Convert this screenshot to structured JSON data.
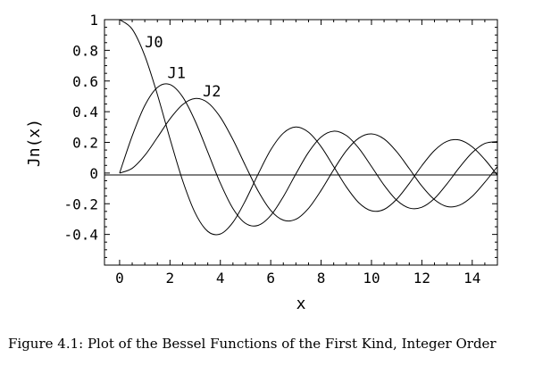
{
  "figure": {
    "caption": "Figure 4.1: Plot of the Bessel Functions of the First Kind, Integer Order"
  },
  "chart_data": {
    "type": "line",
    "title": "",
    "xlabel": "x",
    "ylabel": "Jn(x)",
    "xlim": [
      -0.6,
      15.0
    ],
    "ylim": [
      -0.6,
      1.0
    ],
    "x_ticks": [
      0,
      2,
      4,
      6,
      8,
      10,
      12,
      14
    ],
    "x_tick_labels": [
      "0",
      "2",
      "4",
      "6",
      "8",
      "10",
      "12",
      "14"
    ],
    "y_ticks": [
      1,
      0.8,
      0.6,
      0.4,
      0.2,
      0,
      -0.2,
      -0.4
    ],
    "y_tick_labels": [
      "1",
      "0.8",
      "0.6",
      "0.4",
      "0.2",
      "0",
      "-0.2",
      "-0.4"
    ],
    "grid": false,
    "legend": "none",
    "zero_line": true,
    "series": [
      {
        "name": "J0",
        "label_at": [
          1.0,
          0.82
        ],
        "x": [
          0,
          0.5,
          1.0,
          1.5,
          2.0,
          2.5,
          3.0,
          3.5,
          4.0,
          4.5,
          5.0,
          5.5,
          6.0,
          6.5,
          7.0,
          7.5,
          8.0,
          8.5,
          9.0,
          9.5,
          10.0,
          10.5,
          11.0,
          11.5,
          12.0,
          12.5,
          13.0,
          13.5,
          14.0,
          14.5,
          15.0
        ],
        "values": [
          1.0,
          0.938,
          0.765,
          0.512,
          0.224,
          -0.048,
          -0.26,
          -0.38,
          -0.397,
          -0.321,
          -0.178,
          -0.007,
          0.151,
          0.26,
          0.3,
          0.266,
          0.172,
          0.042,
          -0.09,
          -0.194,
          -0.246,
          -0.237,
          -0.171,
          -0.068,
          0.048,
          0.147,
          0.207,
          0.215,
          0.171,
          0.088,
          -0.014
        ]
      },
      {
        "name": "J1",
        "label_at": [
          1.9,
          0.62
        ],
        "x": [
          0,
          0.5,
          1.0,
          1.5,
          2.0,
          2.5,
          3.0,
          3.5,
          4.0,
          4.5,
          5.0,
          5.5,
          6.0,
          6.5,
          7.0,
          7.5,
          8.0,
          8.5,
          9.0,
          9.5,
          10.0,
          10.5,
          11.0,
          11.5,
          12.0,
          12.5,
          13.0,
          13.5,
          14.0,
          14.5,
          15.0
        ],
        "values": [
          0.0,
          0.242,
          0.44,
          0.558,
          0.577,
          0.497,
          0.339,
          0.137,
          -0.066,
          -0.231,
          -0.328,
          -0.341,
          -0.277,
          -0.154,
          -0.005,
          0.135,
          0.235,
          0.273,
          0.245,
          0.161,
          0.043,
          -0.079,
          -0.177,
          -0.228,
          -0.223,
          -0.166,
          -0.07,
          0.038,
          0.133,
          0.193,
          0.205
        ]
      },
      {
        "name": "J2",
        "label_at": [
          3.3,
          0.5
        ],
        "x": [
          0,
          0.5,
          1.0,
          1.5,
          2.0,
          2.5,
          3.0,
          3.5,
          4.0,
          4.5,
          5.0,
          5.5,
          6.0,
          6.5,
          7.0,
          7.5,
          8.0,
          8.5,
          9.0,
          9.5,
          10.0,
          10.5,
          11.0,
          11.5,
          12.0,
          12.5,
          13.0,
          13.5,
          14.0,
          14.5,
          15.0
        ],
        "values": [
          0.0,
          0.031,
          0.115,
          0.232,
          0.353,
          0.446,
          0.486,
          0.459,
          0.364,
          0.218,
          0.047,
          -0.117,
          -0.243,
          -0.307,
          -0.301,
          -0.23,
          -0.113,
          0.022,
          0.145,
          0.228,
          0.255,
          0.222,
          0.139,
          0.029,
          -0.085,
          -0.173,
          -0.218,
          -0.209,
          -0.152,
          -0.06,
          0.042
        ]
      }
    ]
  }
}
